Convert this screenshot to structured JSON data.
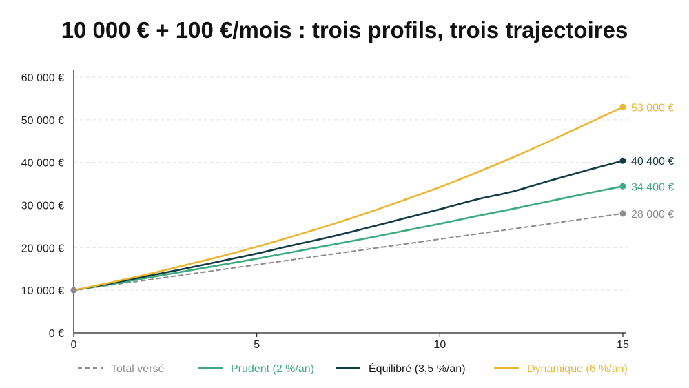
{
  "colors": {
    "total": "#8c8c8c",
    "prudent": "#3daa80",
    "equilibre": "#123b43",
    "dynamique": "#eab530",
    "grid": "#e3e3e3",
    "axis": "#222222"
  },
  "chart_data": {
    "type": "line",
    "title": "10 000 € + 100 €/mois : trois profils, trois trajectoires",
    "xlabel": "",
    "ylabel": "",
    "xlim": [
      0,
      15
    ],
    "ylim": [
      0,
      60000
    ],
    "x_ticks": [
      0,
      5,
      10,
      15
    ],
    "x_tick_labels": [
      "0",
      "5",
      "10",
      "15"
    ],
    "y_ticks": [
      0,
      10000,
      20000,
      30000,
      40000,
      50000,
      60000
    ],
    "y_tick_labels": [
      "0 €",
      "10 000 €",
      "20 000 €",
      "30 000 €",
      "40 000 €",
      "50 000 €",
      "60 000 €"
    ],
    "grid": true,
    "legend_position": "bottom",
    "x": [
      0,
      1,
      2,
      3,
      4,
      5,
      6,
      7,
      8,
      9,
      10,
      11,
      12,
      13,
      14,
      15
    ],
    "series": [
      {
        "key": "total",
        "name": "Total versé",
        "style": "dashed",
        "values": [
          10000,
          11200,
          12400,
          13600,
          14800,
          16000,
          17200,
          18400,
          19600,
          20800,
          22000,
          23200,
          24400,
          25600,
          26800,
          28000
        ],
        "end_label": "28 000 €"
      },
      {
        "key": "prudent",
        "name": "Prudent (2 %/an)",
        "style": "solid",
        "values": [
          10000,
          11400,
          12900,
          14400,
          15900,
          17400,
          19000,
          20600,
          22200,
          23900,
          25600,
          27400,
          29100,
          30900,
          32700,
          34400
        ],
        "end_label": "34 400 €"
      },
      {
        "key": "equilibre",
        "name": "Équilibré (3,5 %/an)",
        "style": "solid",
        "values": [
          10000,
          11600,
          13300,
          15000,
          16800,
          18600,
          20600,
          22500,
          24600,
          26800,
          29000,
          31300,
          33200,
          35700,
          38100,
          40400
        ],
        "end_label": "40 400 €"
      },
      {
        "key": "dynamique",
        "name": "Dynamique (6 %/an)",
        "style": "solid",
        "values": [
          10000,
          11800,
          13700,
          15800,
          17900,
          20200,
          22700,
          25300,
          28100,
          31100,
          34200,
          37600,
          41200,
          45000,
          49000,
          53000
        ],
        "end_label": "53 000 €"
      }
    ]
  }
}
